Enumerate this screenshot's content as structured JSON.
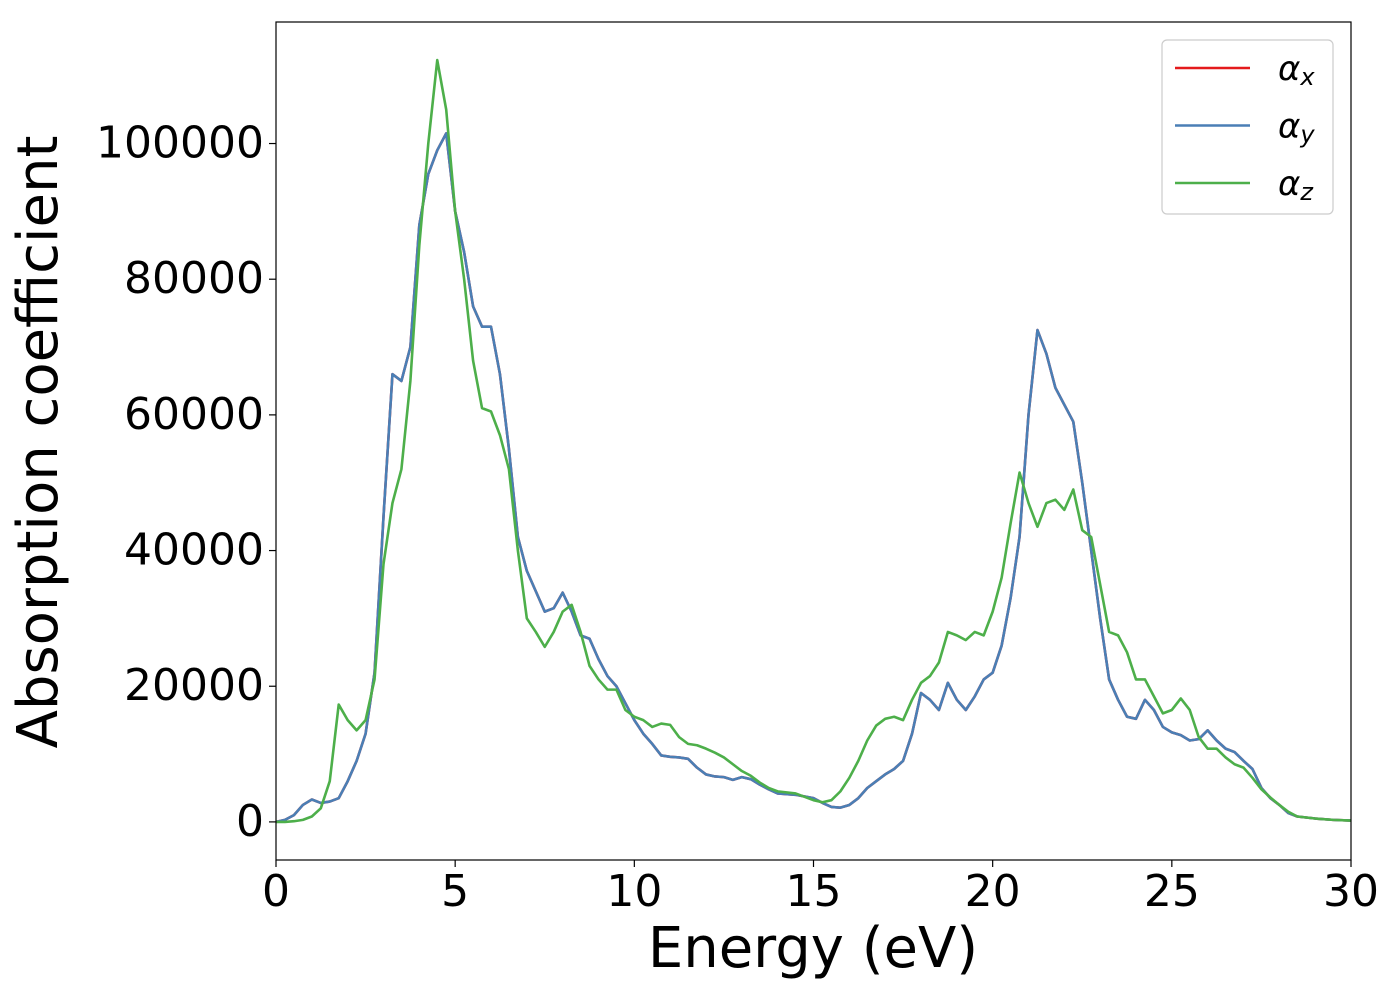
{
  "chart_data": {
    "type": "line",
    "xlabel": "Energy (eV)",
    "ylabel": "Absorption coefficient",
    "x": [
      0,
      0.25,
      0.5,
      0.75,
      1,
      1.25,
      1.5,
      1.75,
      2,
      2.25,
      2.5,
      2.75,
      3,
      3.25,
      3.5,
      3.75,
      4,
      4.25,
      4.5,
      4.75,
      5,
      5.25,
      5.5,
      5.75,
      6,
      6.25,
      6.5,
      6.75,
      7,
      7.25,
      7.5,
      7.75,
      8,
      8.25,
      8.5,
      8.75,
      9,
      9.25,
      9.5,
      9.75,
      10,
      10.25,
      10.5,
      10.75,
      11,
      11.25,
      11.5,
      11.75,
      12,
      12.25,
      12.5,
      12.75,
      13,
      13.25,
      13.5,
      13.75,
      14,
      14.5,
      15,
      15.25,
      15.5,
      15.75,
      16,
      16.25,
      16.5,
      16.75,
      17,
      17.25,
      17.5,
      17.75,
      18,
      18.25,
      18.5,
      18.75,
      19,
      19.25,
      19.5,
      19.75,
      20,
      20.25,
      20.5,
      20.75,
      21,
      21.25,
      21.5,
      21.75,
      22,
      22.25,
      22.5,
      22.75,
      23,
      23.25,
      23.5,
      23.75,
      24,
      24.25,
      24.5,
      24.75,
      25,
      25.25,
      25.5,
      25.75,
      26,
      26.25,
      26.5,
      26.75,
      27,
      27.25,
      27.5,
      27.75,
      28,
      28.25,
      28.5,
      29,
      29.5,
      30
    ],
    "series": [
      {
        "name": "αx",
        "color": "#e41a1c",
        "values": [
          0,
          300,
          1000,
          2500,
          3300,
          2800,
          3000,
          3500,
          6000,
          9000,
          13000,
          22000,
          45000,
          66000,
          65000,
          70000,
          88000,
          95500,
          99000,
          101500,
          90000,
          84000,
          76000,
          73000,
          73000,
          66000,
          55000,
          42000,
          37000,
          34000,
          31000,
          31500,
          33800,
          31000,
          27500,
          27000,
          24000,
          21500,
          20000,
          17500,
          15000,
          13000,
          11500,
          9800,
          9600,
          9500,
          9300,
          8000,
          7000,
          6700,
          6600,
          6200,
          6600,
          6300,
          5500,
          4800,
          4200,
          4000,
          3500,
          2800,
          2200,
          2100,
          2500,
          3500,
          5000,
          6000,
          7000,
          7800,
          9000,
          13000,
          19000,
          18000,
          16500,
          20500,
          18000,
          16500,
          18500,
          21000,
          22000,
          26000,
          33000,
          42000,
          60000,
          72500,
          69000,
          64000,
          61500,
          59000,
          50000,
          40000,
          30000,
          21000,
          18000,
          15500,
          15200,
          18000,
          16500,
          14000,
          13200,
          12800,
          12000,
          12200,
          13500,
          12000,
          10800,
          10300,
          9000,
          7800,
          5000,
          3500,
          2500,
          1300,
          800,
          500,
          300,
          200
        ]
      },
      {
        "name": "αy",
        "color": "#4a7fb5",
        "values": [
          0,
          300,
          1000,
          2500,
          3300,
          2800,
          3000,
          3500,
          6000,
          9000,
          13000,
          22000,
          45000,
          66000,
          65000,
          70000,
          88000,
          95500,
          99000,
          101500,
          90000,
          84000,
          76000,
          73000,
          73000,
          66000,
          55000,
          42000,
          37000,
          34000,
          31000,
          31500,
          33800,
          31000,
          27500,
          27000,
          24000,
          21500,
          20000,
          17500,
          15000,
          13000,
          11500,
          9800,
          9600,
          9500,
          9300,
          8000,
          7000,
          6700,
          6600,
          6200,
          6600,
          6300,
          5500,
          4800,
          4200,
          4000,
          3500,
          2800,
          2200,
          2100,
          2500,
          3500,
          5000,
          6000,
          7000,
          7800,
          9000,
          13000,
          19000,
          18000,
          16500,
          20500,
          18000,
          16500,
          18500,
          21000,
          22000,
          26000,
          33000,
          42000,
          60000,
          72500,
          69000,
          64000,
          61500,
          59000,
          50000,
          40000,
          30000,
          21000,
          18000,
          15500,
          15200,
          18000,
          16500,
          14000,
          13200,
          12800,
          12000,
          12200,
          13500,
          12000,
          10800,
          10300,
          9000,
          7800,
          5000,
          3500,
          2500,
          1300,
          800,
          500,
          300,
          200
        ]
      },
      {
        "name": "αz",
        "color": "#4daf4a",
        "values": [
          0,
          0,
          100,
          300,
          800,
          2000,
          6000,
          17300,
          15000,
          13500,
          15000,
          21000,
          38000,
          47000,
          52000,
          65000,
          85000,
          100000,
          112300,
          105000,
          90000,
          80000,
          68000,
          61000,
          60500,
          57000,
          52000,
          40000,
          30000,
          28000,
          25800,
          28000,
          31000,
          32000,
          28000,
          23000,
          21000,
          19500,
          19500,
          16500,
          15500,
          15000,
          14000,
          14500,
          14300,
          12500,
          11500,
          11300,
          10800,
          10200,
          9500,
          8500,
          7500,
          6800,
          5800,
          5000,
          4500,
          4200,
          3200,
          2900,
          3200,
          4500,
          6500,
          9000,
          12000,
          14200,
          15200,
          15500,
          15000,
          18000,
          20500,
          21500,
          23500,
          28000,
          27500,
          26800,
          28000,
          27500,
          31000,
          36000,
          44000,
          51500,
          47000,
          43500,
          47000,
          47500,
          46000,
          49000,
          43000,
          42000,
          35000,
          28000,
          27500,
          25000,
          21000,
          21000,
          18500,
          16000,
          16500,
          18200,
          16500,
          12500,
          10800,
          10800,
          9500,
          8500,
          8000,
          6500,
          4800,
          3600,
          2500,
          1500,
          800,
          500,
          300,
          200
        ]
      }
    ],
    "xlim": [
      0,
      30
    ],
    "xticks": [
      0,
      5,
      10,
      15,
      20,
      25,
      30
    ],
    "ylim": [
      -5615,
      117915
    ],
    "yticks": [
      0,
      20000,
      40000,
      60000,
      80000,
      100000
    ],
    "grid": false,
    "legend": "upper right"
  }
}
